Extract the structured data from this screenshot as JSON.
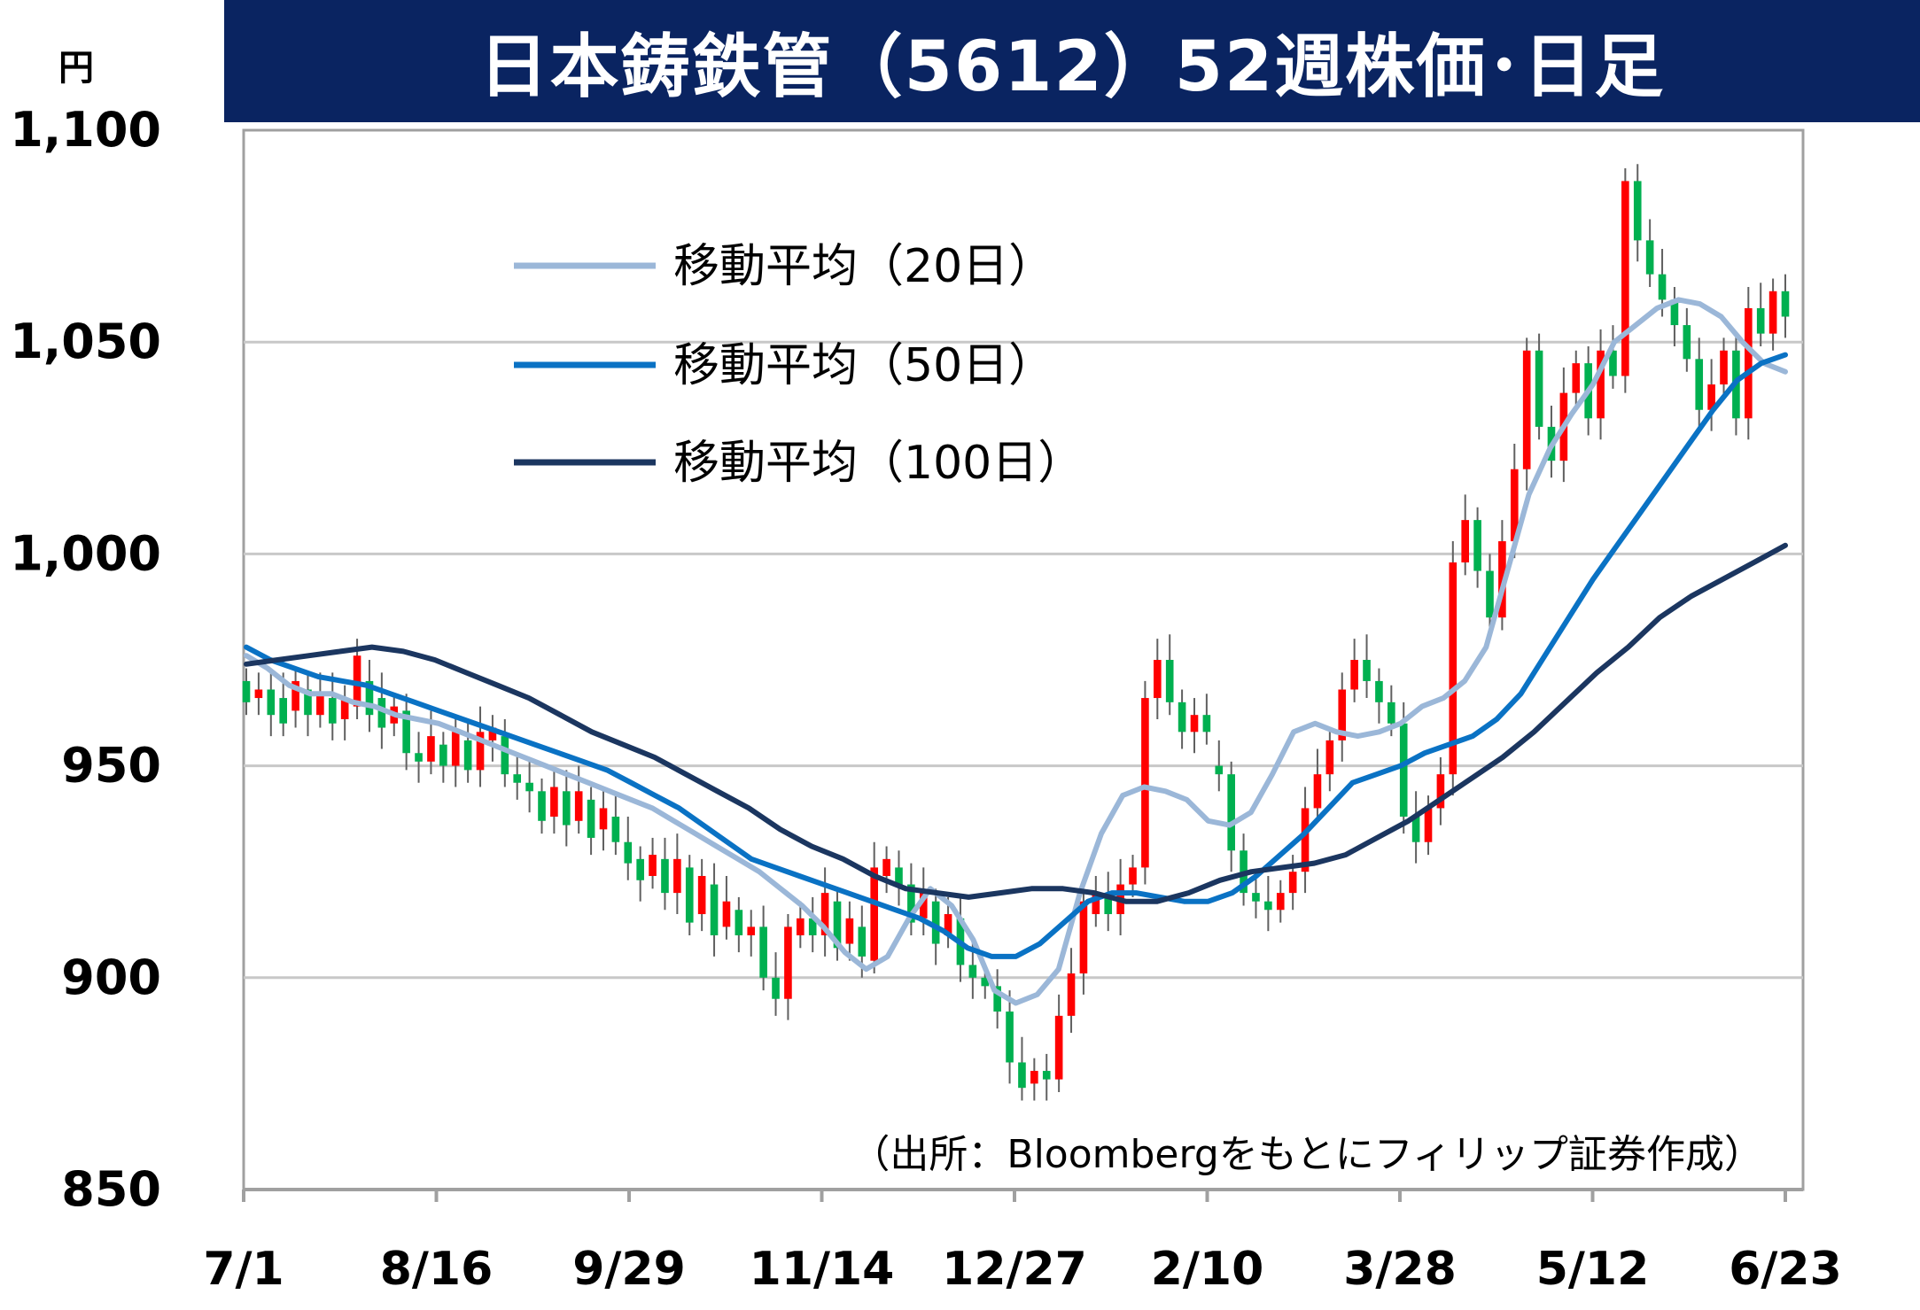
{
  "title": "日本鋳鉄管（5612）52週株価･日足",
  "unit_label": "円",
  "source_note": "（出所：Bloombergをもとにフィリップ証券作成）",
  "colors": {
    "up": "#ff0000",
    "down": "#00b050",
    "ma20": "#9bb7d8",
    "ma50": "#0a72c4",
    "ma100": "#1b3660",
    "title_bg": "#0a2461",
    "grid": "#c8c8c8"
  },
  "chart_data": {
    "type": "candlestick",
    "ylabel": "円",
    "ylim": [
      850,
      1100
    ],
    "yticks": [
      850,
      900,
      950,
      1000,
      1050,
      1100
    ],
    "ytick_labels": [
      "850",
      "900",
      "950",
      "1,000",
      "1,050",
      "1,100"
    ],
    "xtick_labels": [
      "7/1",
      "8/16",
      "9/29",
      "11/14",
      "12/27",
      "2/10",
      "3/28",
      "5/12",
      "6/23"
    ],
    "grid": true,
    "legend_position": "top-left",
    "legend": [
      "移動平均（20日）",
      "移動平均（50日）",
      "移動平均（100日）"
    ],
    "candles_approx": [
      [
        970,
        965
      ],
      [
        966,
        968
      ],
      [
        968,
        962
      ],
      [
        966,
        960
      ],
      [
        963,
        970
      ],
      [
        968,
        962
      ],
      [
        962,
        967
      ],
      [
        966,
        960
      ],
      [
        961,
        966
      ],
      [
        964,
        976
      ],
      [
        970,
        962
      ],
      [
        966,
        959
      ],
      [
        960,
        964
      ],
      [
        963,
        953
      ],
      [
        953,
        951
      ],
      [
        951,
        957
      ],
      [
        955,
        950
      ],
      [
        950,
        958
      ],
      [
        956,
        949
      ],
      [
        949,
        958
      ],
      [
        956,
        959
      ],
      [
        957,
        948
      ],
      [
        948,
        946
      ],
      [
        946,
        944
      ],
      [
        944,
        937
      ],
      [
        938,
        945
      ],
      [
        944,
        936
      ],
      [
        937,
        944
      ],
      [
        942,
        933
      ],
      [
        935,
        940
      ],
      [
        938,
        932
      ],
      [
        932,
        927
      ],
      [
        928,
        923
      ],
      [
        924,
        929
      ],
      [
        928,
        920
      ],
      [
        920,
        928
      ],
      [
        926,
        913
      ],
      [
        915,
        924
      ],
      [
        922,
        910
      ],
      [
        912,
        918
      ],
      [
        916,
        910
      ],
      [
        910,
        912
      ],
      [
        912,
        900
      ],
      [
        900,
        895
      ],
      [
        895,
        912
      ],
      [
        910,
        914
      ],
      [
        914,
        910
      ],
      [
        910,
        920
      ],
      [
        918,
        907
      ],
      [
        908,
        914
      ],
      [
        912,
        905
      ],
      [
        904,
        926
      ],
      [
        924,
        928
      ],
      [
        926,
        922
      ],
      [
        922,
        913
      ],
      [
        914,
        920
      ],
      [
        918,
        908
      ],
      [
        910,
        915
      ],
      [
        914,
        903
      ],
      [
        903,
        900
      ],
      [
        900,
        898
      ],
      [
        898,
        892
      ],
      [
        892,
        880
      ],
      [
        880,
        874
      ],
      [
        875,
        878
      ],
      [
        878,
        876
      ],
      [
        876,
        891
      ],
      [
        891,
        901
      ],
      [
        901,
        918
      ],
      [
        915,
        920
      ],
      [
        920,
        915
      ],
      [
        915,
        922
      ],
      [
        922,
        926
      ],
      [
        926,
        966
      ],
      [
        966,
        975
      ],
      [
        975,
        965
      ],
      [
        965,
        958
      ],
      [
        958,
        962
      ],
      [
        962,
        958
      ],
      [
        950,
        948
      ],
      [
        948,
        930
      ],
      [
        930,
        920
      ],
      [
        920,
        918
      ],
      [
        918,
        916
      ],
      [
        916,
        920
      ],
      [
        920,
        925
      ],
      [
        925,
        940
      ],
      [
        940,
        948
      ],
      [
        948,
        956
      ],
      [
        956,
        968
      ],
      [
        968,
        975
      ],
      [
        975,
        970
      ],
      [
        970,
        965
      ],
      [
        965,
        960
      ],
      [
        960,
        938
      ],
      [
        938,
        932
      ],
      [
        932,
        940
      ],
      [
        940,
        948
      ],
      [
        948,
        998
      ],
      [
        998,
        1008
      ],
      [
        1008,
        996
      ],
      [
        996,
        985
      ],
      [
        985,
        1003
      ],
      [
        1003,
        1020
      ],
      [
        1020,
        1048
      ],
      [
        1048,
        1030
      ],
      [
        1030,
        1022
      ],
      [
        1022,
        1038
      ],
      [
        1038,
        1045
      ],
      [
        1045,
        1032
      ],
      [
        1032,
        1048
      ],
      [
        1048,
        1042
      ],
      [
        1042,
        1088
      ],
      [
        1088,
        1074
      ],
      [
        1074,
        1066
      ],
      [
        1066,
        1060
      ],
      [
        1060,
        1054
      ],
      [
        1054,
        1046
      ],
      [
        1046,
        1034
      ],
      [
        1034,
        1040
      ],
      [
        1040,
        1048
      ],
      [
        1048,
        1032
      ],
      [
        1032,
        1058
      ],
      [
        1058,
        1052
      ],
      [
        1052,
        1062
      ],
      [
        1062,
        1056
      ]
    ],
    "series": [
      {
        "name": "移動平均（20日）",
        "values": [
          976,
          973,
          969,
          967,
          967,
          965,
          964,
          962,
          961,
          960,
          958,
          956,
          954,
          952,
          950,
          948,
          946,
          944,
          942,
          940,
          937,
          934,
          931,
          928,
          925,
          921,
          917,
          912,
          906,
          902,
          905,
          914,
          921,
          917,
          909,
          897,
          894,
          896,
          902,
          920,
          934,
          943,
          945,
          944,
          942,
          937,
          936,
          939,
          948,
          958,
          960,
          958,
          957,
          958,
          960,
          964,
          966,
          970,
          978,
          996,
          1014,
          1025,
          1033,
          1040,
          1050,
          1054,
          1058,
          1060,
          1059,
          1056,
          1050,
          1045,
          1043
        ]
      },
      {
        "name": "移動平均（50日）",
        "values": [
          978,
          975,
          973,
          971,
          970,
          969,
          967,
          965,
          963,
          961,
          959,
          957,
          955,
          953,
          951,
          949,
          946,
          943,
          940,
          936,
          932,
          928,
          926,
          924,
          922,
          920,
          918,
          916,
          914,
          911,
          907,
          905,
          905,
          908,
          913,
          918,
          920,
          920,
          919,
          918,
          918,
          920,
          924,
          929,
          934,
          940,
          946,
          948,
          950,
          953,
          955,
          957,
          961,
          967,
          976,
          985,
          994,
          1002,
          1010,
          1018,
          1026,
          1034,
          1041,
          1045,
          1047
        ]
      },
      {
        "name": "移動平均（100日）",
        "values": [
          974,
          975,
          976,
          977,
          978,
          977,
          975,
          972,
          969,
          966,
          962,
          958,
          955,
          952,
          948,
          944,
          940,
          935,
          931,
          928,
          924,
          921,
          920,
          919,
          920,
          921,
          921,
          920,
          918,
          918,
          920,
          923,
          925,
          926,
          927,
          929,
          933,
          937,
          942,
          947,
          952,
          958,
          965,
          972,
          978,
          985,
          990,
          994,
          998,
          1002
        ]
      }
    ]
  }
}
